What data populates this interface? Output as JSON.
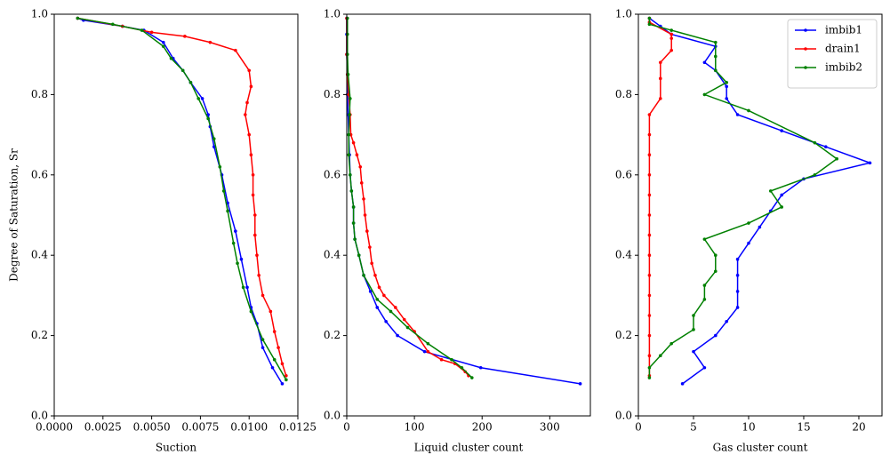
{
  "chart_data": [
    {
      "type": "line",
      "xlabel": "Suction",
      "ylabel": "Degree of Saturation, Sr",
      "xlim": [
        0,
        0.0125
      ],
      "xticks": [
        {
          "value": 0,
          "label": "0.0000"
        },
        {
          "value": 0.0025,
          "label": "0.0025"
        },
        {
          "value": 0.005,
          "label": "0.0050"
        },
        {
          "value": 0.0075,
          "label": "0.0075"
        },
        {
          "value": 0.01,
          "label": "0.0100"
        },
        {
          "value": 0.0125,
          "label": "0.0125"
        }
      ],
      "ylim": [
        0,
        1
      ],
      "yticks": [
        {
          "value": 0,
          "label": "0.0"
        },
        {
          "value": 0.2,
          "label": "0.2"
        },
        {
          "value": 0.4,
          "label": "0.4"
        },
        {
          "value": 0.6,
          "label": "0.6"
        },
        {
          "value": 0.8,
          "label": "0.8"
        },
        {
          "value": 1,
          "label": "1.0"
        }
      ],
      "series": [
        {
          "color": "#0000ff",
          "x": [
            0.0117,
            0.0112,
            0.0107,
            0.0104,
            0.0101,
            0.0099,
            0.0096,
            0.0093,
            0.0089,
            0.0086,
            0.0082,
            0.008,
            0.0079,
            0.0076,
            0.007,
            0.0066,
            0.0061,
            0.0056,
            0.0046,
            0.0035,
            0.0015,
            0.0012
          ],
          "values": [
            0.08,
            0.12,
            0.17,
            0.23,
            0.27,
            0.32,
            0.39,
            0.46,
            0.53,
            0.6,
            0.67,
            0.72,
            0.75,
            0.79,
            0.83,
            0.86,
            0.89,
            0.93,
            0.96,
            0.97,
            0.985,
            0.99
          ]
        },
        {
          "color": "#ff0000",
          "x": [
            0.0119,
            0.0117,
            0.0115,
            0.0113,
            0.0111,
            0.0107,
            0.0105,
            0.0104,
            0.0103,
            0.0103,
            0.0102,
            0.0102,
            0.0101,
            0.01,
            0.0098,
            0.0099,
            0.0101,
            0.01,
            0.0093,
            0.008,
            0.0067,
            0.005,
            0.0035,
            0.0012
          ],
          "values": [
            0.1,
            0.13,
            0.17,
            0.21,
            0.26,
            0.3,
            0.35,
            0.4,
            0.45,
            0.5,
            0.55,
            0.6,
            0.65,
            0.7,
            0.75,
            0.78,
            0.82,
            0.86,
            0.91,
            0.93,
            0.945,
            0.955,
            0.97,
            0.99
          ]
        },
        {
          "color": "#008000",
          "x": [
            0.0119,
            0.0113,
            0.0107,
            0.0101,
            0.0097,
            0.0094,
            0.0092,
            0.0089,
            0.0087,
            0.0085,
            0.0082,
            0.0079,
            0.0074,
            0.007,
            0.0066,
            0.006,
            0.0056,
            0.0045,
            0.003,
            0.0012
          ],
          "values": [
            0.09,
            0.14,
            0.19,
            0.26,
            0.32,
            0.38,
            0.43,
            0.51,
            0.56,
            0.62,
            0.69,
            0.74,
            0.79,
            0.83,
            0.86,
            0.89,
            0.92,
            0.96,
            0.975,
            0.99
          ]
        }
      ]
    },
    {
      "type": "line",
      "xlabel": "Liquid cluster count",
      "xlim": [
        0,
        360
      ],
      "xticks": [
        0,
        100,
        200,
        300
      ],
      "ylim": [
        0,
        1
      ],
      "yticks": [
        {
          "value": 0,
          "label": "0.0"
        },
        {
          "value": 0.2,
          "label": "0.2"
        },
        {
          "value": 0.4,
          "label": "0.4"
        },
        {
          "value": 0.6,
          "label": "0.6"
        },
        {
          "value": 0.8,
          "label": "0.8"
        },
        {
          "value": 1,
          "label": "1.0"
        }
      ],
      "series": [
        {
          "color": "#0000ff",
          "x": [
            345,
            198,
            115,
            75,
            58,
            45,
            35,
            25,
            18,
            12,
            10,
            10,
            7,
            5,
            4,
            3,
            2,
            1,
            1,
            0,
            0,
            0
          ],
          "values": [
            0.08,
            0.12,
            0.16,
            0.2,
            0.235,
            0.27,
            0.31,
            0.35,
            0.4,
            0.44,
            0.48,
            0.52,
            0.56,
            0.6,
            0.65,
            0.7,
            0.75,
            0.8,
            0.85,
            0.9,
            0.95,
            0.99
          ]
        },
        {
          "color": "#ff0000",
          "x": [
            180,
            175,
            160,
            140,
            120,
            100,
            85,
            72,
            55,
            48,
            42,
            37,
            34,
            30,
            27,
            25,
            22,
            20,
            15,
            10,
            6,
            5,
            3,
            1,
            0,
            0
          ],
          "values": [
            0.1,
            0.11,
            0.13,
            0.14,
            0.16,
            0.21,
            0.24,
            0.27,
            0.3,
            0.32,
            0.35,
            0.38,
            0.42,
            0.46,
            0.5,
            0.54,
            0.58,
            0.62,
            0.65,
            0.68,
            0.7,
            0.75,
            0.8,
            0.85,
            0.9,
            0.99
          ]
        },
        {
          "color": "#008000",
          "x": [
            185,
            170,
            155,
            120,
            90,
            65,
            45,
            25,
            18,
            12,
            10,
            10,
            7,
            5,
            3,
            3,
            4,
            5,
            2,
            1,
            1,
            1
          ],
          "values": [
            0.095,
            0.12,
            0.14,
            0.18,
            0.22,
            0.26,
            0.29,
            0.35,
            0.4,
            0.44,
            0.48,
            0.52,
            0.56,
            0.6,
            0.65,
            0.7,
            0.75,
            0.79,
            0.85,
            0.9,
            0.95,
            0.99
          ]
        }
      ]
    },
    {
      "type": "line",
      "xlabel": "Gas cluster count",
      "xlim": [
        0,
        22.1
      ],
      "xticks": [
        0,
        5,
        10,
        15,
        20
      ],
      "ylim": [
        0,
        1
      ],
      "yticks": [
        {
          "value": 0,
          "label": "0.0"
        },
        {
          "value": 0.2,
          "label": "0.2"
        },
        {
          "value": 0.4,
          "label": "0.4"
        },
        {
          "value": 0.6,
          "label": "0.6"
        },
        {
          "value": 0.8,
          "label": "0.8"
        },
        {
          "value": 1,
          "label": "1.0"
        }
      ],
      "legend": "upper right",
      "series": [
        {
          "name": "imbib1",
          "color": "#0000ff",
          "x": [
            4,
            6,
            5,
            7,
            8,
            9,
            9,
            9,
            9,
            10,
            11,
            12,
            13,
            15,
            21,
            17,
            13,
            9,
            8,
            8,
            7,
            6,
            7,
            3,
            2,
            1
          ],
          "values": [
            0.08,
            0.12,
            0.16,
            0.2,
            0.235,
            0.27,
            0.31,
            0.35,
            0.39,
            0.43,
            0.47,
            0.51,
            0.55,
            0.59,
            0.63,
            0.67,
            0.71,
            0.75,
            0.79,
            0.82,
            0.86,
            0.88,
            0.92,
            0.95,
            0.97,
            0.99
          ]
        },
        {
          "name": "drain1",
          "color": "#ff0000",
          "x": [
            1,
            1,
            1,
            1,
            1,
            1,
            1,
            1,
            1,
            1,
            1,
            1,
            1,
            1,
            2,
            2,
            2,
            3,
            3,
            3,
            1,
            1
          ],
          "values": [
            0.1,
            0.15,
            0.2,
            0.25,
            0.3,
            0.35,
            0.4,
            0.45,
            0.5,
            0.55,
            0.6,
            0.65,
            0.7,
            0.75,
            0.79,
            0.84,
            0.88,
            0.91,
            0.94,
            0.95,
            0.98,
            0.99
          ]
        },
        {
          "name": "imbib2",
          "color": "#008000",
          "x": [
            1,
            1,
            2,
            3,
            5,
            5,
            6,
            6,
            7,
            7,
            6,
            10,
            13,
            12,
            16,
            18,
            16,
            10,
            6,
            8,
            7,
            7,
            7,
            3,
            1,
            1
          ],
          "values": [
            0.095,
            0.12,
            0.15,
            0.18,
            0.215,
            0.25,
            0.29,
            0.325,
            0.36,
            0.4,
            0.44,
            0.48,
            0.52,
            0.56,
            0.6,
            0.64,
            0.68,
            0.76,
            0.8,
            0.83,
            0.86,
            0.895,
            0.93,
            0.96,
            0.975,
            0.99
          ]
        }
      ]
    }
  ]
}
